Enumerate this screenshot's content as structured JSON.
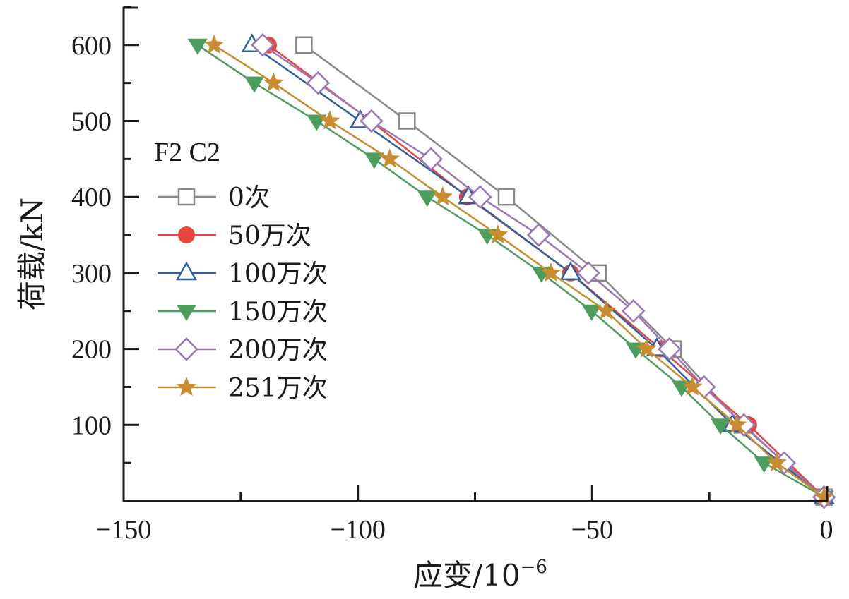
{
  "chart_data": {
    "type": "line",
    "title": "",
    "xlabel": "应变/10",
    "xlabel_superscript": "−6",
    "ylabel": "荷载/kN",
    "xlim": [
      -150,
      0
    ],
    "ylim": [
      0,
      650
    ],
    "xticks": [
      -150,
      -125,
      -100,
      -75,
      -50,
      -25,
      0
    ],
    "xtick_labels": [
      "−150",
      "",
      "−100",
      "",
      "−50",
      "",
      "0"
    ],
    "yticks": [
      50,
      100,
      150,
      200,
      250,
      300,
      350,
      400,
      450,
      500,
      550,
      600,
      650
    ],
    "ytick_labels": [
      "",
      "100",
      "",
      "200",
      "",
      "300",
      "",
      "400",
      "",
      "500",
      "",
      "600",
      ""
    ],
    "grid": false,
    "legend": {
      "title": "F2   C2",
      "placement": "center-left"
    },
    "series": [
      {
        "name": "0次",
        "color": "#888888",
        "marker": "square-open",
        "points": [
          [
            -111.5,
            600
          ],
          [
            -89.5,
            500
          ],
          [
            -68.3,
            400
          ],
          [
            -48.7,
            300
          ],
          [
            -32.7,
            200
          ],
          [
            -18.0,
            100
          ],
          [
            -0.5,
            5
          ]
        ]
      },
      {
        "name": "50万次",
        "color": "#e8453c",
        "marker": "circle-filled",
        "points": [
          [
            -119.1,
            600
          ],
          [
            -97.2,
            500
          ],
          [
            -76.6,
            400
          ],
          [
            -54.6,
            300
          ],
          [
            -35.4,
            200
          ],
          [
            -16.6,
            100
          ],
          [
            -0.5,
            5
          ]
        ]
      },
      {
        "name": "100万次",
        "color": "#2f5f9e",
        "marker": "triangle-up-open",
        "points": [
          [
            -122.6,
            600
          ],
          [
            -99.5,
            500
          ],
          [
            -76.4,
            400
          ],
          [
            -54.6,
            300
          ],
          [
            -36.2,
            200
          ],
          [
            -20.0,
            100
          ],
          [
            -0.5,
            5
          ]
        ]
      },
      {
        "name": "150万次",
        "color": "#4c9e5f",
        "marker": "triangle-down-filled",
        "points": [
          [
            -134.2,
            600
          ],
          [
            -122.1,
            550
          ],
          [
            -108.8,
            500
          ],
          [
            -96.5,
            450
          ],
          [
            -85.2,
            400
          ],
          [
            -72.4,
            350
          ],
          [
            -60.8,
            300
          ],
          [
            -50.1,
            250
          ],
          [
            -40.7,
            200
          ],
          [
            -30.9,
            150
          ],
          [
            -22.6,
            100
          ],
          [
            -13.3,
            50
          ],
          [
            -0.5,
            5
          ]
        ]
      },
      {
        "name": "200万次",
        "color": "#9b77b8",
        "marker": "diamond-open",
        "points": [
          [
            -120.3,
            600
          ],
          [
            -108.5,
            550
          ],
          [
            -97.1,
            500
          ],
          [
            -84.4,
            450
          ],
          [
            -73.9,
            400
          ],
          [
            -61.4,
            350
          ],
          [
            -50.8,
            300
          ],
          [
            -41.2,
            250
          ],
          [
            -33.5,
            200
          ],
          [
            -26.1,
            150
          ],
          [
            -17.6,
            100
          ],
          [
            -9.0,
            50
          ],
          [
            -0.5,
            5
          ]
        ]
      },
      {
        "name": "251万次",
        "color": "#c98c2e",
        "marker": "star-filled",
        "points": [
          [
            -130.7,
            600
          ],
          [
            -118.0,
            550
          ],
          [
            -106.0,
            500
          ],
          [
            -93.2,
            450
          ],
          [
            -81.9,
            400
          ],
          [
            -70.1,
            350
          ],
          [
            -58.8,
            300
          ],
          [
            -47.0,
            250
          ],
          [
            -38.4,
            200
          ],
          [
            -28.6,
            150
          ],
          [
            -19.1,
            100
          ],
          [
            -10.6,
            50
          ],
          [
            -0.5,
            5
          ]
        ]
      }
    ]
  }
}
